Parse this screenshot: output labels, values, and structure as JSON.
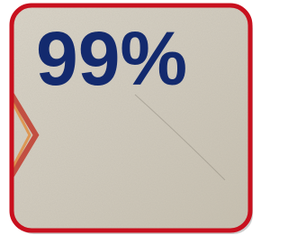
{
  "badge": {
    "text": "99%"
  }
}
